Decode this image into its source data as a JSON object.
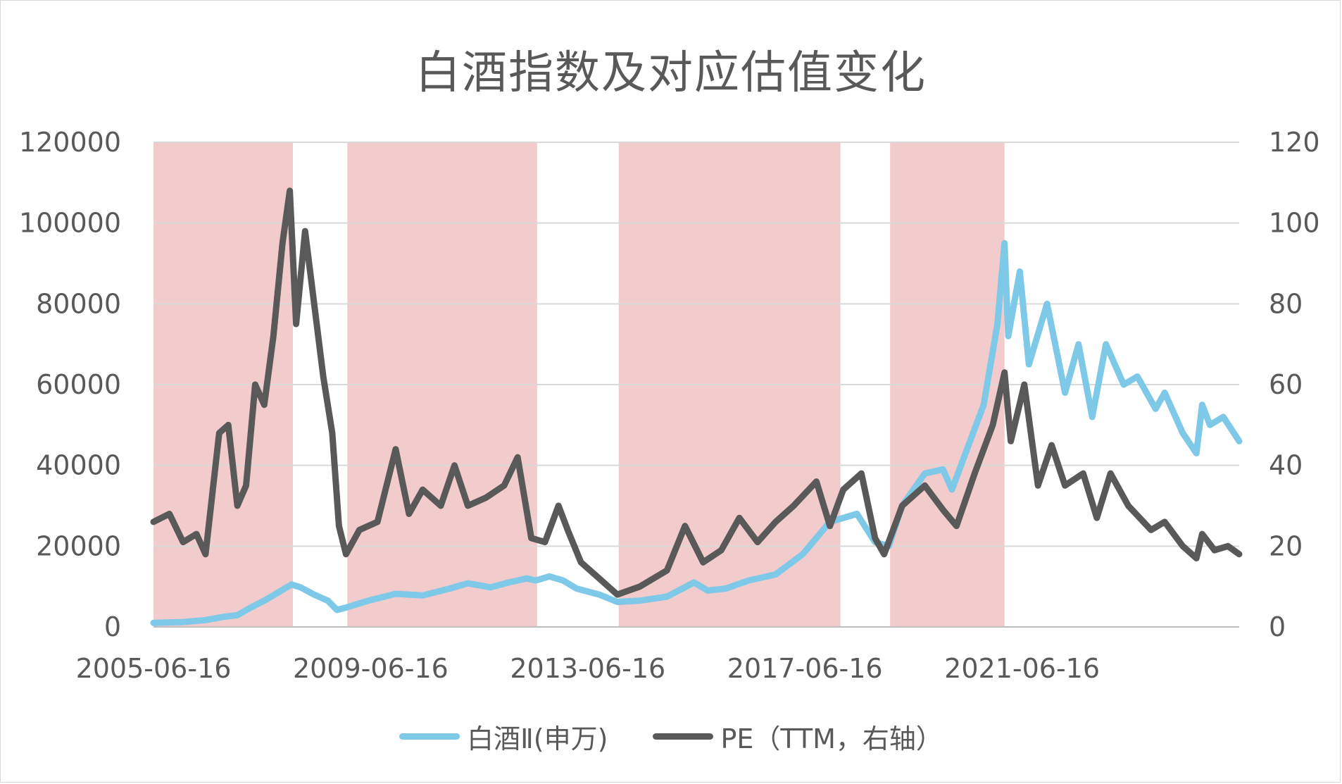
{
  "chart_data": {
    "type": "line",
    "title": "白酒指数及对应估值变化",
    "x_tick_labels": [
      "2005-06-16",
      "2009-06-16",
      "2013-06-16",
      "2017-06-16",
      "2021-06-16"
    ],
    "x_range": [
      "2005-06-16",
      "2025-06-16"
    ],
    "y_left": {
      "ticks": [
        "0",
        "20000",
        "40000",
        "60000",
        "80000",
        "100000",
        "120000"
      ],
      "range": [
        0,
        120000
      ]
    },
    "y_right": {
      "ticks": [
        "0",
        "20",
        "40",
        "60",
        "80",
        "100",
        "120"
      ],
      "range": [
        0,
        120
      ]
    },
    "grid": true,
    "legend_position": "bottom",
    "shaded_periods": [
      {
        "start": "2005-06-16",
        "end": "2008-01-10"
      },
      {
        "start": "2009-01-10",
        "end": "2012-07-10"
      },
      {
        "start": "2014-01-10",
        "end": "2018-02-10"
      },
      {
        "start": "2019-01-10",
        "end": "2021-02-18"
      }
    ],
    "series": [
      {
        "name": "白酒Ⅱ(申万)",
        "axis": "left",
        "color": "#7ec8e8",
        "points": [
          [
            "2005-06-16",
            1000
          ],
          [
            "2006-01-01",
            1200
          ],
          [
            "2006-06-01",
            1700
          ],
          [
            "2006-10-01",
            2500
          ],
          [
            "2007-01-01",
            2900
          ],
          [
            "2007-04-01",
            4800
          ],
          [
            "2007-07-01",
            6500
          ],
          [
            "2007-10-01",
            8500
          ],
          [
            "2008-01-01",
            10500
          ],
          [
            "2008-03-01",
            9800
          ],
          [
            "2008-06-01",
            8000
          ],
          [
            "2008-09-01",
            6500
          ],
          [
            "2008-11-01",
            4200
          ],
          [
            "2009-01-01",
            4800
          ],
          [
            "2009-06-01",
            6500
          ],
          [
            "2009-12-01",
            8200
          ],
          [
            "2010-06-01",
            7800
          ],
          [
            "2010-12-01",
            9500
          ],
          [
            "2011-04-01",
            10800
          ],
          [
            "2011-09-01",
            9800
          ],
          [
            "2012-01-01",
            11000
          ],
          [
            "2012-05-01",
            12000
          ],
          [
            "2012-07-01",
            11500
          ],
          [
            "2012-10-01",
            12500
          ],
          [
            "2013-01-01",
            11500
          ],
          [
            "2013-04-01",
            9500
          ],
          [
            "2013-09-01",
            8000
          ],
          [
            "2014-01-01",
            6200
          ],
          [
            "2014-06-01",
            6500
          ],
          [
            "2014-12-01",
            7500
          ],
          [
            "2015-06-01",
            11000
          ],
          [
            "2015-09-01",
            9000
          ],
          [
            "2016-01-01",
            9500
          ],
          [
            "2016-06-01",
            11500
          ],
          [
            "2016-12-01",
            13000
          ],
          [
            "2017-06-01",
            18000
          ],
          [
            "2017-12-01",
            26000
          ],
          [
            "2018-06-01",
            28000
          ],
          [
            "2018-10-01",
            21000
          ],
          [
            "2019-01-01",
            20000
          ],
          [
            "2019-04-01",
            30000
          ],
          [
            "2019-09-01",
            38000
          ],
          [
            "2020-01-01",
            39000
          ],
          [
            "2020-03-01",
            34000
          ],
          [
            "2020-07-01",
            46000
          ],
          [
            "2020-10-01",
            55000
          ],
          [
            "2021-01-01",
            75000
          ],
          [
            "2021-02-18",
            95000
          ],
          [
            "2021-03-15",
            72000
          ],
          [
            "2021-06-01",
            88000
          ],
          [
            "2021-08-01",
            65000
          ],
          [
            "2021-12-01",
            80000
          ],
          [
            "2022-04-01",
            58000
          ],
          [
            "2022-07-01",
            70000
          ],
          [
            "2022-10-01",
            52000
          ],
          [
            "2023-01-01",
            70000
          ],
          [
            "2023-05-01",
            60000
          ],
          [
            "2023-08-01",
            62000
          ],
          [
            "2023-12-01",
            54000
          ],
          [
            "2024-02-01",
            58000
          ],
          [
            "2024-06-01",
            48000
          ],
          [
            "2024-09-01",
            43000
          ],
          [
            "2024-10-10",
            55000
          ],
          [
            "2024-12-01",
            50000
          ],
          [
            "2025-03-01",
            52000
          ],
          [
            "2025-06-16",
            46000
          ]
        ]
      },
      {
        "name": "PE（TTM，右轴）",
        "axis": "right",
        "color": "#595959",
        "points": [
          [
            "2005-06-16",
            26
          ],
          [
            "2005-10-01",
            28
          ],
          [
            "2006-01-01",
            21
          ],
          [
            "2006-04-01",
            23
          ],
          [
            "2006-06-01",
            18
          ],
          [
            "2006-09-01",
            48
          ],
          [
            "2006-11-01",
            50
          ],
          [
            "2007-01-01",
            30
          ],
          [
            "2007-03-01",
            35
          ],
          [
            "2007-05-01",
            60
          ],
          [
            "2007-07-01",
            55
          ],
          [
            "2007-09-01",
            72
          ],
          [
            "2007-11-01",
            95
          ],
          [
            "2007-12-20",
            108
          ],
          [
            "2008-02-01",
            75
          ],
          [
            "2008-04-01",
            98
          ],
          [
            "2008-06-01",
            80
          ],
          [
            "2008-08-01",
            62
          ],
          [
            "2008-10-01",
            48
          ],
          [
            "2008-11-15",
            25
          ],
          [
            "2009-01-01",
            18
          ],
          [
            "2009-04-01",
            24
          ],
          [
            "2009-08-01",
            26
          ],
          [
            "2009-12-01",
            44
          ],
          [
            "2010-03-01",
            28
          ],
          [
            "2010-06-01",
            34
          ],
          [
            "2010-10-01",
            30
          ],
          [
            "2011-01-01",
            40
          ],
          [
            "2011-04-01",
            30
          ],
          [
            "2011-08-01",
            32
          ],
          [
            "2011-12-01",
            35
          ],
          [
            "2012-03-01",
            42
          ],
          [
            "2012-06-01",
            22
          ],
          [
            "2012-09-01",
            21
          ],
          [
            "2012-12-01",
            30
          ],
          [
            "2013-02-01",
            24
          ],
          [
            "2013-05-01",
            16
          ],
          [
            "2013-09-01",
            12
          ],
          [
            "2014-01-01",
            8
          ],
          [
            "2014-06-01",
            10
          ],
          [
            "2014-12-01",
            14
          ],
          [
            "2015-04-01",
            25
          ],
          [
            "2015-08-01",
            16
          ],
          [
            "2015-12-01",
            19
          ],
          [
            "2016-04-01",
            27
          ],
          [
            "2016-08-01",
            21
          ],
          [
            "2016-12-01",
            26
          ],
          [
            "2017-04-01",
            30
          ],
          [
            "2017-09-01",
            36
          ],
          [
            "2017-12-01",
            25
          ],
          [
            "2018-03-01",
            34
          ],
          [
            "2018-07-01",
            38
          ],
          [
            "2018-10-01",
            22
          ],
          [
            "2018-12-01",
            18
          ],
          [
            "2019-04-01",
            30
          ],
          [
            "2019-09-01",
            35
          ],
          [
            "2020-01-01",
            29
          ],
          [
            "2020-04-01",
            25
          ],
          [
            "2020-08-01",
            38
          ],
          [
            "2020-12-01",
            50
          ],
          [
            "2021-02-18",
            63
          ],
          [
            "2021-04-01",
            46
          ],
          [
            "2021-07-01",
            60
          ],
          [
            "2021-10-01",
            35
          ],
          [
            "2022-01-01",
            45
          ],
          [
            "2022-04-01",
            35
          ],
          [
            "2022-08-01",
            38
          ],
          [
            "2022-11-01",
            27
          ],
          [
            "2023-02-01",
            38
          ],
          [
            "2023-06-01",
            30
          ],
          [
            "2023-11-01",
            24
          ],
          [
            "2024-02-01",
            26
          ],
          [
            "2024-06-01",
            20
          ],
          [
            "2024-09-01",
            17
          ],
          [
            "2024-10-10",
            23
          ],
          [
            "2025-01-01",
            19
          ],
          [
            "2025-04-01",
            20
          ],
          [
            "2025-06-16",
            18
          ]
        ]
      }
    ]
  }
}
